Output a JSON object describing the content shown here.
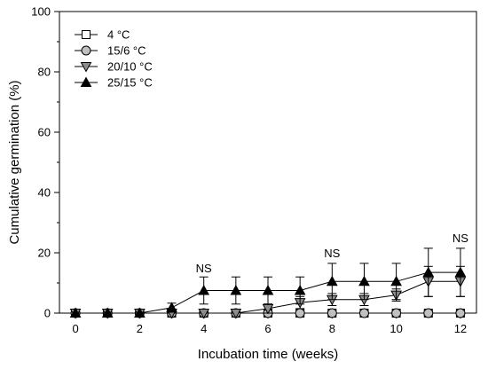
{
  "chart_data": {
    "type": "line",
    "title": "",
    "xlabel": "Incubation time (weeks)",
    "ylabel": "Cumulative germination (%)",
    "xlim": [
      -0.5,
      12.5
    ],
    "ylim": [
      0,
      100
    ],
    "xticks": [
      0,
      2,
      4,
      6,
      8,
      10,
      12
    ],
    "yticks": [
      0,
      20,
      40,
      60,
      80,
      100
    ],
    "grid": false,
    "legend_position": "top-left",
    "x": [
      0,
      1,
      2,
      3,
      4,
      5,
      6,
      7,
      8,
      9,
      10,
      11,
      12
    ],
    "series": [
      {
        "name": "4 °C",
        "marker": "square",
        "fill": "#ffffff",
        "values": [
          0,
          0,
          0,
          0,
          0,
          0,
          0,
          0,
          0,
          0,
          0,
          0,
          0
        ],
        "errors": [
          0,
          0,
          0,
          0,
          0,
          0,
          0,
          0,
          0,
          0,
          0,
          0,
          0
        ]
      },
      {
        "name": "15/6 °C",
        "marker": "circle",
        "fill": "#c0c0c0",
        "values": [
          0,
          0,
          0,
          0,
          0,
          0,
          0,
          0,
          0,
          0,
          0,
          0,
          0
        ],
        "errors": [
          0,
          0,
          0,
          0,
          0,
          0,
          0,
          0,
          0,
          0,
          0,
          0,
          0
        ]
      },
      {
        "name": "20/10 °C",
        "marker": "triangle-down",
        "fill": "#8c8c8c",
        "values": [
          0,
          0,
          0,
          0,
          0,
          0,
          1.5,
          3.5,
          4.5,
          4.5,
          6,
          10.5,
          10.5
        ],
        "errors": [
          0,
          0,
          0,
          0,
          0,
          0,
          1.5,
          2,
          2,
          2,
          2,
          5,
          5
        ]
      },
      {
        "name": "25/15 °C",
        "marker": "triangle-up",
        "fill": "#000000",
        "values": [
          0,
          0,
          0,
          1.8,
          7.5,
          7.5,
          7.5,
          7.5,
          10.5,
          10.5,
          10.5,
          13.5,
          13.5
        ],
        "errors": [
          0,
          0,
          0,
          1.5,
          4.5,
          4.5,
          4.5,
          4.5,
          6,
          6,
          6,
          8,
          8
        ]
      }
    ],
    "annotations": [
      {
        "text": "NS",
        "x": 4,
        "y": 13.5
      },
      {
        "text": "NS",
        "x": 8,
        "y": 18.5
      },
      {
        "text": "NS",
        "x": 12,
        "y": 23.5
      }
    ]
  }
}
